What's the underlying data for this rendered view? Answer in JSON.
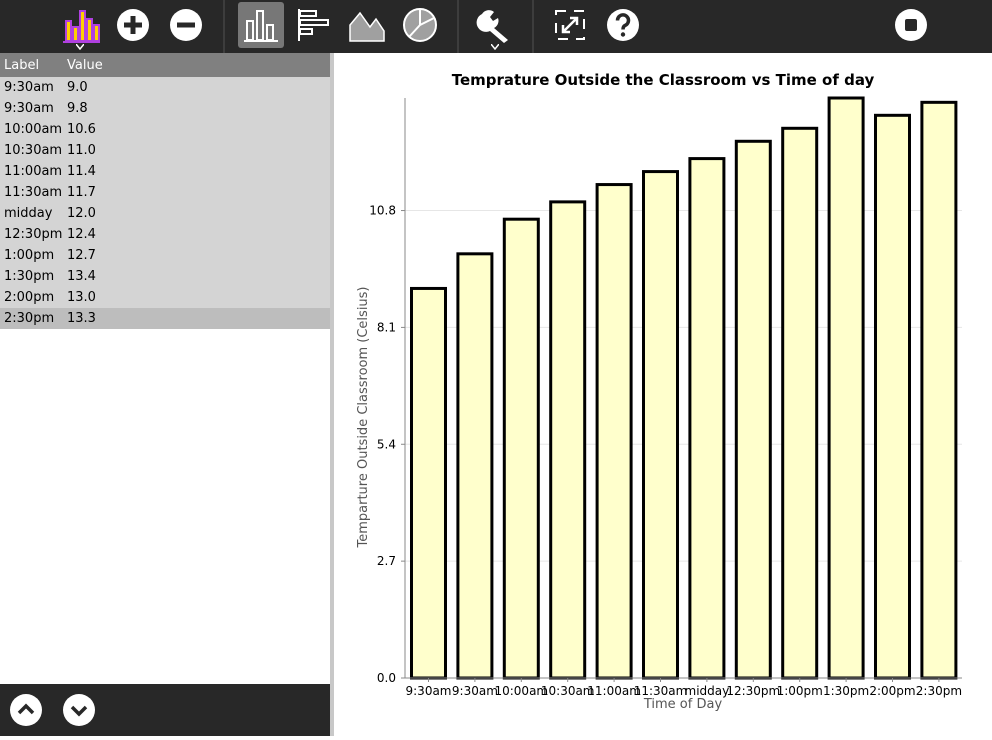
{
  "toolbar": {
    "buttons": [
      {
        "name": "activity-chart-icon"
      },
      {
        "name": "add-icon"
      },
      {
        "name": "remove-icon"
      },
      {
        "name": "vertical-bar-chart-icon",
        "active": true
      },
      {
        "name": "horizontal-bar-chart-icon"
      },
      {
        "name": "line-area-chart-icon"
      },
      {
        "name": "pie-chart-icon"
      },
      {
        "name": "wrench-icon"
      },
      {
        "name": "fullscreen-icon"
      },
      {
        "name": "help-icon"
      },
      {
        "name": "stop-icon"
      }
    ]
  },
  "table": {
    "header": {
      "label": "Label",
      "value": "Value"
    },
    "rows": [
      {
        "label": "9:30am",
        "value": "9.0"
      },
      {
        "label": "9:30am",
        "value": "9.8"
      },
      {
        "label": "10:00am",
        "value": "10.6"
      },
      {
        "label": "10:30am",
        "value": "11.0"
      },
      {
        "label": "11:00am",
        "value": "11.4"
      },
      {
        "label": "11:30am",
        "value": "11.7"
      },
      {
        "label": "midday",
        "value": "12.0"
      },
      {
        "label": "12:30pm",
        "value": "12.4"
      },
      {
        "label": "1:00pm",
        "value": "12.7"
      },
      {
        "label": "1:30pm",
        "value": "13.4"
      },
      {
        "label": "2:00pm",
        "value": "13.0"
      },
      {
        "label": "2:30pm",
        "value": "13.3"
      }
    ],
    "selected_index": 11
  },
  "colors": {
    "toolbar_bg": "#282828",
    "bar_fill": "#ffffcc",
    "bar_stroke": "#000000",
    "accent_purple": "#b040e0",
    "accent_yellow": "#ffd000"
  },
  "chart_data": {
    "type": "bar",
    "title": "Temprature Outside the Classroom vs Time of day",
    "xlabel": "Time of Day",
    "ylabel": "Temparture Outside Classroom (Celsius)",
    "categories": [
      "9:30am",
      "9:30am",
      "10:00am",
      "10:30am",
      "11:00am",
      "11:30am",
      "midday",
      "12:30pm",
      "1:00pm",
      "1:30pm",
      "2:00pm",
      "2:30pm"
    ],
    "values": [
      9.0,
      9.8,
      10.6,
      11.0,
      11.4,
      11.7,
      12.0,
      12.4,
      12.7,
      13.4,
      13.0,
      13.3
    ],
    "yticks": [
      "0.0",
      "2.7",
      "5.4",
      "8.1",
      "10.8"
    ],
    "ytick_values": [
      0.0,
      2.7,
      5.4,
      8.1,
      10.8
    ],
    "ylim": [
      0,
      13.4
    ],
    "grid": true
  }
}
